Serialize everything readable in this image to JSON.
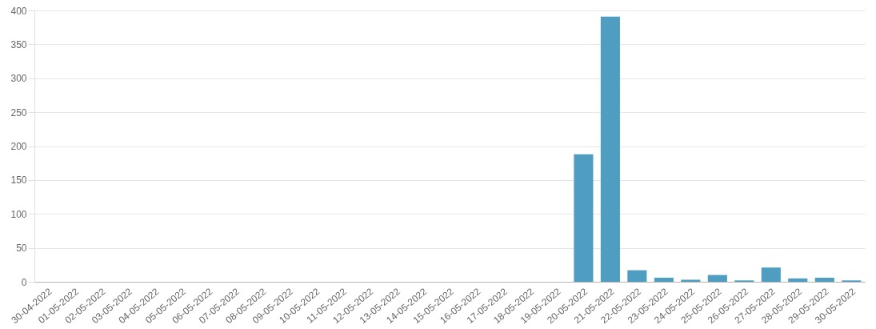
{
  "chart_data": {
    "type": "bar",
    "categories": [
      "30-04-2022",
      "01-05-2022",
      "02-05-2022",
      "03-05-2022",
      "04-05-2022",
      "05-05-2022",
      "06-05-2022",
      "07-05-2022",
      "08-05-2022",
      "09-05-2022",
      "10-05-2022",
      "11-05-2022",
      "12-05-2022",
      "13-05-2022",
      "14-05-2022",
      "15-05-2022",
      "16-05-2022",
      "17-05-2022",
      "18-05-2022",
      "19-05-2022",
      "20-05-2022",
      "21-05-2022",
      "22-05-2022",
      "23-05-2022",
      "24-05-2022",
      "25-05-2022",
      "26-05-2022",
      "27-05-2022",
      "28-05-2022",
      "29-05-2022",
      "30-05-2022"
    ],
    "values": [
      0,
      0,
      0,
      0,
      0,
      0,
      0,
      0,
      0,
      0,
      0,
      0,
      0,
      0,
      0,
      0,
      0,
      0,
      0,
      0,
      188,
      391,
      17,
      6,
      3,
      10,
      2,
      21,
      5,
      6,
      2
    ],
    "color": "#4f9dc0",
    "ylim": [
      0,
      400
    ],
    "yticks": [
      0,
      50,
      100,
      150,
      200,
      250,
      300,
      350,
      400
    ],
    "grid": "y"
  }
}
